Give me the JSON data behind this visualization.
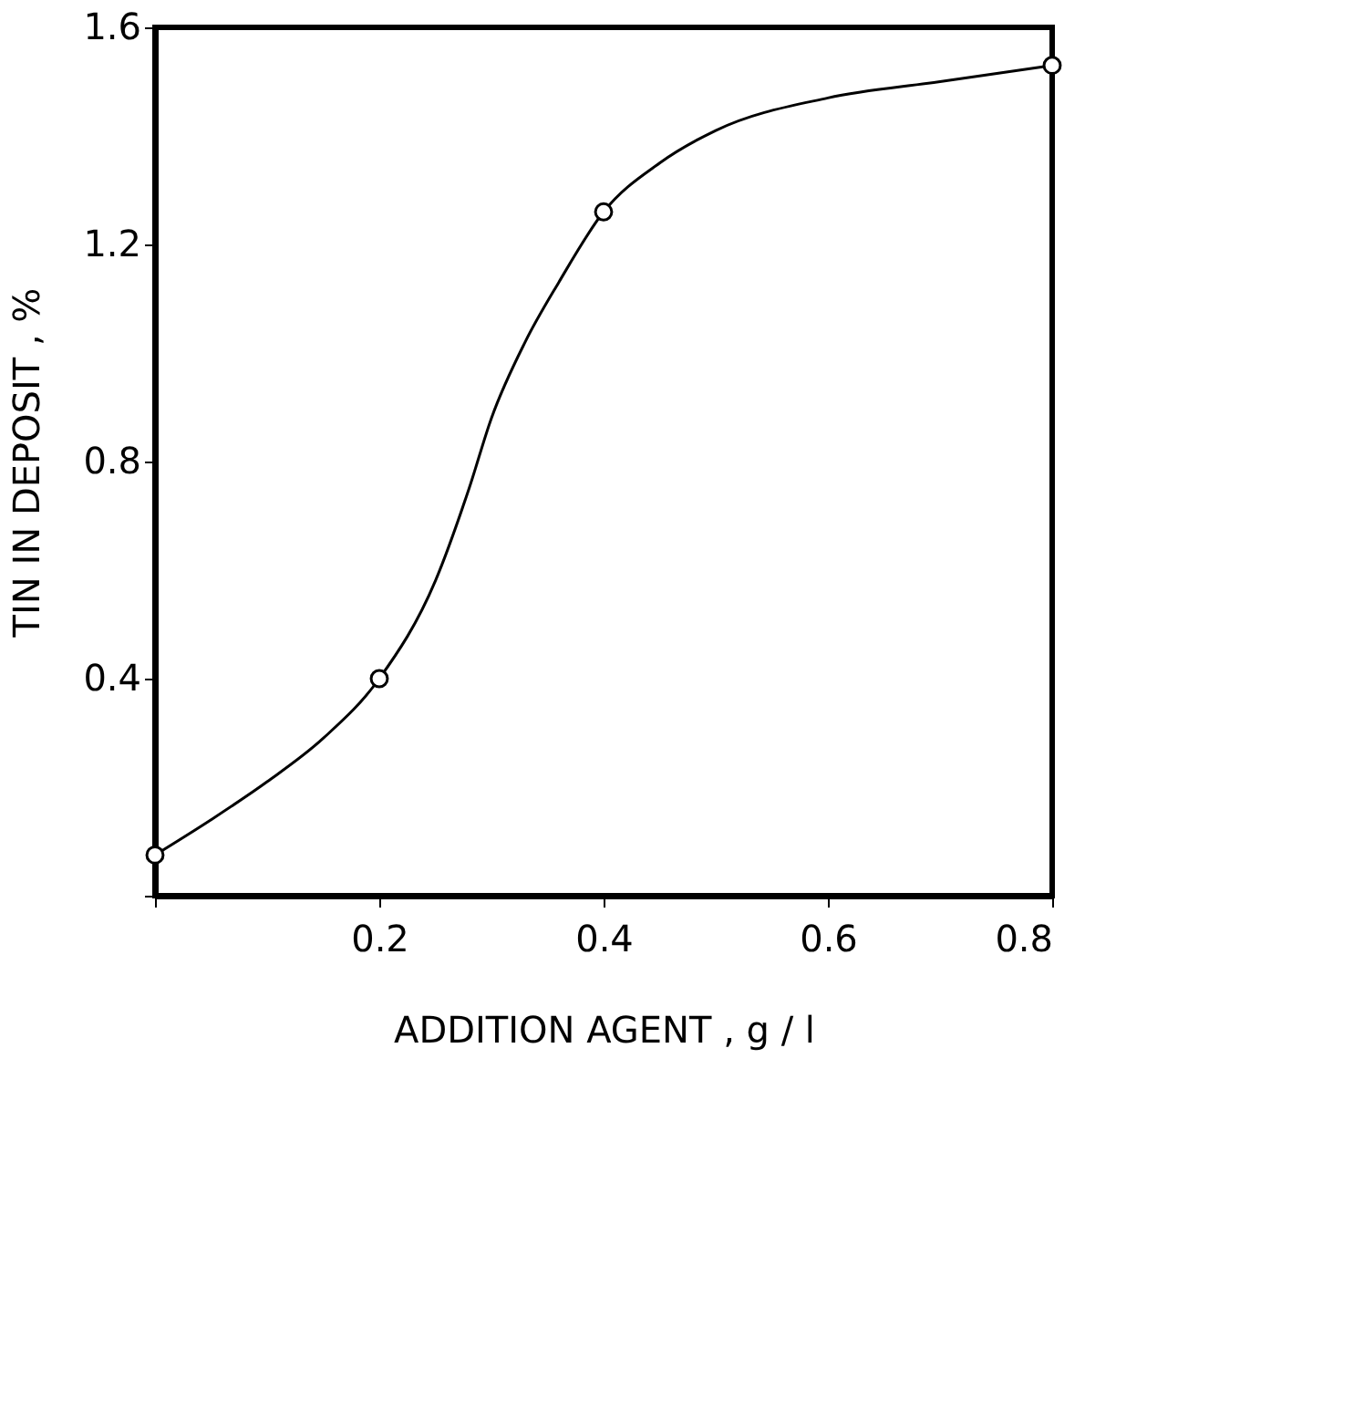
{
  "chart_data": {
    "type": "line",
    "xlabel": "ADDITION  AGENT  ,  g / l",
    "ylabel": "TIN  IN  DEPOSIT  ,  %",
    "xlim": [
      0,
      0.8
    ],
    "ylim": [
      0,
      1.6
    ],
    "xticks": [
      {
        "value": 0,
        "label": null
      },
      0.2,
      0.4,
      0.6,
      0.8
    ],
    "yticks": [
      {
        "value": 0,
        "label": null
      },
      0.4,
      0.8,
      1.2,
      1.6
    ],
    "grid": false,
    "series": [
      {
        "color": "#000000",
        "marker": "none",
        "line_style": "solid",
        "x": [
          0,
          0.05,
          0.1,
          0.15,
          0.2,
          0.25,
          0.28,
          0.3,
          0.33,
          0.36,
          0.4,
          0.45,
          0.5,
          0.6,
          0.7,
          0.8
        ],
        "values": [
          0.075,
          0.14,
          0.21,
          0.29,
          0.4,
          0.58,
          0.75,
          0.88,
          1.02,
          1.13,
          1.26,
          1.35,
          1.41,
          1.47,
          1.5,
          1.53
        ]
      },
      {
        "type": "scatter",
        "color": "#000000",
        "marker": "circle",
        "x": [
          0,
          0.2,
          0.4,
          0.8
        ],
        "values": [
          0.075,
          0.4,
          1.26,
          1.53
        ]
      }
    ]
  }
}
